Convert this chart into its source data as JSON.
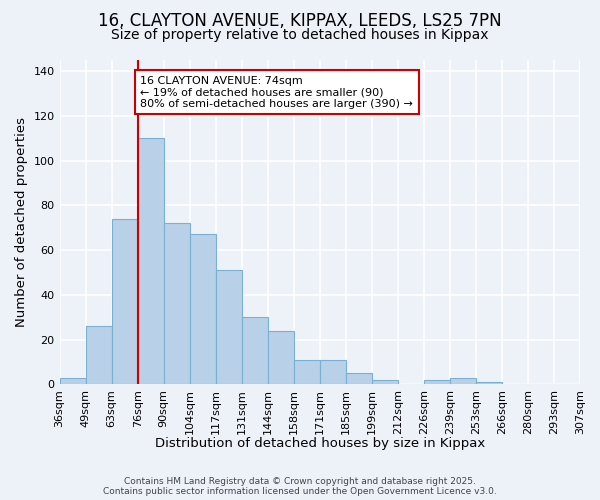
{
  "title": "16, CLAYTON AVENUE, KIPPAX, LEEDS, LS25 7PN",
  "subtitle": "Size of property relative to detached houses in Kippax",
  "xlabel": "Distribution of detached houses by size in Kippax",
  "ylabel": "Number of detached properties",
  "bar_values": [
    3,
    26,
    74,
    110,
    72,
    67,
    51,
    30,
    24,
    11,
    11,
    5,
    2,
    0,
    2,
    3,
    1,
    0,
    0,
    0
  ],
  "bin_edges": [
    36,
    49,
    63,
    76,
    90,
    104,
    117,
    131,
    144,
    158,
    171,
    185,
    199,
    212,
    226,
    239,
    253,
    266,
    280,
    293,
    307
  ],
  "bin_labels": [
    "36sqm",
    "49sqm",
    "63sqm",
    "76sqm",
    "90sqm",
    "104sqm",
    "117sqm",
    "131sqm",
    "144sqm",
    "158sqm",
    "171sqm",
    "185sqm",
    "199sqm",
    "212sqm",
    "226sqm",
    "239sqm",
    "253sqm",
    "266sqm",
    "280sqm",
    "293sqm",
    "307sqm"
  ],
  "bar_color": "#b8d0e8",
  "bar_edge_color": "#7ab0d4",
  "ylim": [
    0,
    145
  ],
  "yticks": [
    0,
    20,
    40,
    60,
    80,
    100,
    120,
    140
  ],
  "vline_bin_index": 3,
  "vline_color": "#cc0000",
  "annotation_text": "16 CLAYTON AVENUE: 74sqm\n← 19% of detached houses are smaller (90)\n80% of semi-detached houses are larger (390) →",
  "footer_line1": "Contains HM Land Registry data © Crown copyright and database right 2025.",
  "footer_line2": "Contains public sector information licensed under the Open Government Licence v3.0.",
  "background_color": "#edf2f9",
  "grid_color": "#ffffff",
  "title_fontsize": 12,
  "subtitle_fontsize": 10,
  "axis_label_fontsize": 9.5,
  "tick_fontsize": 8,
  "annotation_fontsize": 8,
  "footer_fontsize": 6.5
}
